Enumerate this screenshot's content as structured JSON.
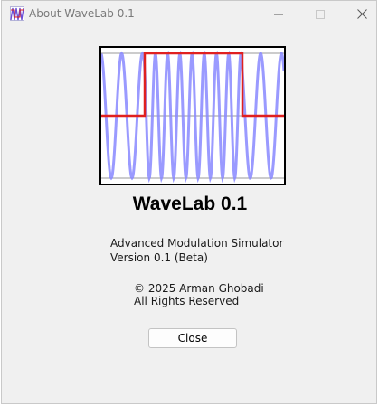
{
  "window": {
    "title": "About WaveLab 0.1",
    "icon": "wavelab-app-icon"
  },
  "title_controls": {
    "minimize_icon": "minimize-icon",
    "maximize_icon": "maximize-icon",
    "close_icon": "close-icon"
  },
  "logo": {
    "icon": "modulation-waveform-logo",
    "colors": {
      "carrier": "#8888ff",
      "pulse": "#e02020",
      "grid": "#9a9a9a",
      "border": "#000000"
    }
  },
  "about": {
    "app_name": "WaveLab 0.1",
    "description": "Advanced Modulation Simulator",
    "version": "Version 0.1 (Beta)",
    "copyright": "© 2025 Arman Ghobadi",
    "rights": "All Rights Reserved"
  },
  "actions": {
    "close_label": "Close"
  }
}
